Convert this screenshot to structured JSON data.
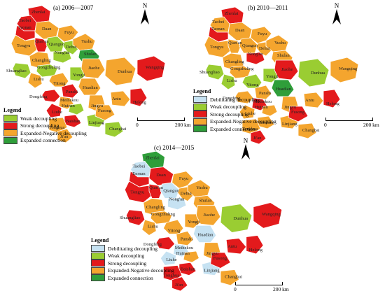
{
  "colors": {
    "debilitating": "#c6e2f2",
    "weak": "#9acd32",
    "strong": "#e31a1c",
    "expanded_negative": "#f4a52e",
    "expanded_connection": "#2f9e3a"
  },
  "legend": {
    "title": "Legend",
    "items": [
      {
        "label": "Debilitating decoupling",
        "key": "debilitating"
      },
      {
        "label": "Weak decoupling",
        "key": "weak"
      },
      {
        "label": "Strong decoupling",
        "key": "strong"
      },
      {
        "label": "Expanded-Negative decoupling",
        "key": "expanded_negative"
      },
      {
        "label": "Expanded connection",
        "key": "expanded_connection"
      }
    ]
  },
  "north_label": "N",
  "scale": {
    "start": "0",
    "end": "200 km"
  },
  "panels": [
    {
      "title": "(a) 2006—2007",
      "has_debilitating_in_legend": false,
      "regions": {
        "Zhenlai": "strong",
        "Taobei": "strong",
        "Taonan": "strong",
        "Daan": "expanded_negative",
        "Tongyu": "expanded_negative",
        "Qian'an": "strong",
        "Fuyu": "expanded_negative",
        "Qianguo": "weak",
        "Nong'an": "weak",
        "Dehui": "weak",
        "Yushu": "expanded_negative",
        "Shulan": "expanded_connection",
        "Changling": "expanded_negative",
        "Shuangliao": "weak",
        "Gongzhuling": "weak",
        "Lishu": "expanded_negative",
        "Yitong": "expanded_negative",
        "Yongji": "weak",
        "Jiaohe": "expanded_negative",
        "Dunhua": "expanded_negative",
        "Wangqing": "strong",
        "Panshi": "strong",
        "Huadian": "expanded_negative",
        "Dongfeng": "strong",
        "Meihekou": "expanded_negative",
        "Huinan": "weak",
        "Liuhe": "strong",
        "Jingyu": "expanded_negative",
        "Antu": "expanded_negative",
        "Helong": "strong",
        "Baishan": "strong",
        "Tonghua": "expanded_negative",
        "Linjiang": "weak",
        "Changbai": "weak",
        "Ji'an": "expanded_negative",
        "Fusong": "expanded_negative"
      }
    },
    {
      "title": "(b) 2010—2011",
      "has_debilitating_in_legend": true,
      "regions": {
        "Zhenlai": "strong",
        "Taobei": "expanded_negative",
        "Taonan": "strong",
        "Daan": "expanded_negative",
        "Tongyu": "expanded_negative",
        "Qian'an": "expanded_negative",
        "Fuyu": "expanded_negative",
        "Qianguo": "expanded_negative",
        "Nong'an": "strong",
        "Dehui": "expanded_negative",
        "Yushu": "expanded_negative",
        "Shulan": "expanded_negative",
        "Changling": "expanded_negative",
        "Shuangliao": "weak",
        "Gongzhuling": "expanded_negative",
        "Lishu": "weak",
        "Yitong": "weak",
        "Yongji": "weak",
        "Jiaohe": "strong",
        "Dunhua": "weak",
        "Wangqing": "expanded_negative",
        "Panshi": "expanded_negative",
        "Huadian": "expanded_connection",
        "Dongfeng": "expanded_negative",
        "Meihekou": "strong",
        "Huinan": "expanded_negative",
        "Liuhe": "expanded_negative",
        "Jingyu": "expanded_negative",
        "Antu": "expanded_negative",
        "Helong": "strong",
        "Baishan": "expanded_negative",
        "Tonghua": "expanded_negative",
        "Linjiang": "expanded_negative",
        "Changbai": "expanded_negative",
        "Ji'an": "strong",
        "Fusong": "strong"
      }
    },
    {
      "title": "(c) 2014—2015",
      "has_debilitating_in_legend": true,
      "regions": {
        "Zhenlai": "expanded_connection",
        "Taobei": "debilitating",
        "Taonan": "strong",
        "Daan": "strong",
        "Tongyu": "strong",
        "Qian'an": "strong",
        "Fuyu": "expanded_negative",
        "Qianguo": "debilitating",
        "Nong'an": "debilitating",
        "Dehui": "expanded_negative",
        "Yushu": "expanded_negative",
        "Shulan": "expanded_negative",
        "Changling": "expanded_negative",
        "Shuangliao": "strong",
        "Gongzhuling": "expanded_negative",
        "Lishu": "expanded_negative",
        "Yitong": "expanded_negative",
        "Yongji": "expanded_negative",
        "Jiaohe": "expanded_negative",
        "Dunhua": "weak",
        "Wangqing": "strong",
        "Panshi": "expanded_negative",
        "Huadian": "debilitating",
        "Dongfeng": "strong",
        "Meihekou": "debilitating",
        "Huinan": "expanded_negative",
        "Liuhe": "debilitating",
        "Jingyu": "expanded_negative",
        "Antu": "strong",
        "Helong": "strong",
        "Baishan": "strong",
        "Tonghua": "strong",
        "Linjiang": "debilitating",
        "Changbai": "expanded_negative",
        "Ji'an": "strong",
        "Fusong": "strong"
      }
    }
  ]
}
